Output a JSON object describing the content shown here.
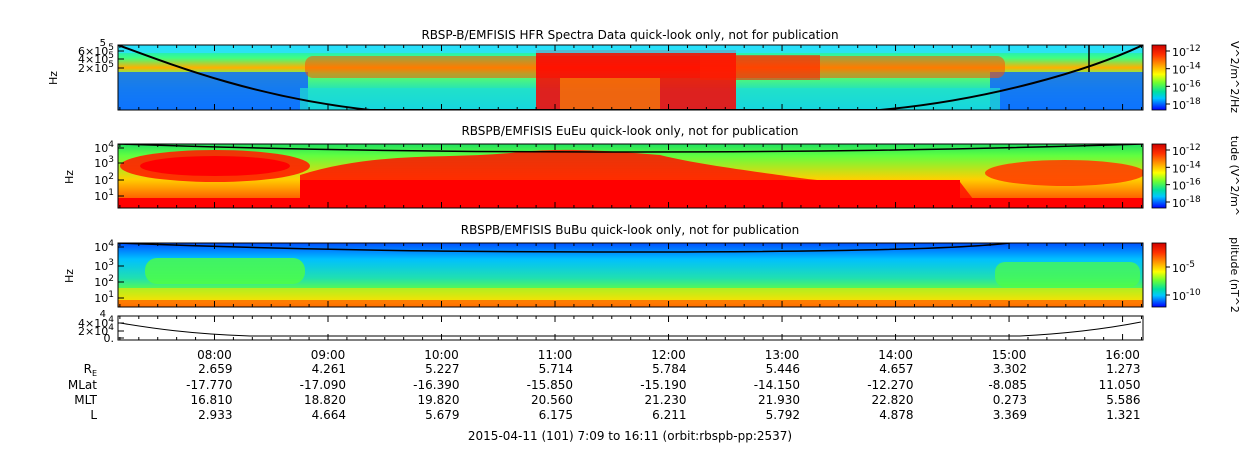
{
  "chart_data": {
    "type": "heatmap",
    "time_ticks": [
      "08:00",
      "09:00",
      "10:00",
      "11:00",
      "12:00",
      "13:00",
      "14:00",
      "15:00",
      "16:00"
    ],
    "time_start_hours": 7.15,
    "time_end_hours": 16.18,
    "ephemeris": {
      "labels": {
        "rs_main": "R",
        "rs_sub": "E",
        "mlat": "MLat",
        "mlt": "MLT",
        "l": "L"
      },
      "rs": [
        "2.659",
        "4.261",
        "5.227",
        "5.714",
        "5.784",
        "5.446",
        "4.657",
        "3.302",
        "1.273"
      ],
      "mlat": [
        "-17.770",
        "-17.090",
        "-16.390",
        "-15.850",
        "-15.190",
        "-14.150",
        "-12.270",
        "-8.085",
        "11.050"
      ],
      "mlt": [
        "16.810",
        "18.820",
        "19.820",
        "20.560",
        "21.230",
        "21.930",
        "22.820",
        "0.273",
        "5.586"
      ],
      "l": [
        "2.933",
        "4.664",
        "5.679",
        "6.175",
        "6.211",
        "5.792",
        "4.878",
        "3.369",
        "1.321"
      ]
    },
    "footer": "2015-04-11 (101) 7:09 to 16:11 (orbit:rbspb-pp:2537)",
    "panels": [
      {
        "id": "hfr",
        "title": "RBSP-B/EMFISIS  HFR Spectra Data quick-look only, not for publication",
        "ylabel": "Hz",
        "yticks": [
          {
            "base": "6×10",
            "exp": "5"
          },
          {
            "base": "4×10",
            "exp": "5"
          },
          {
            "base": "2×10",
            "exp": "5"
          }
        ],
        "ytick_top": "5",
        "colorbar_label": "V^2/m^2/Hz",
        "colorbar_ticks": [
          {
            "base": "10",
            "exp": "-12"
          },
          {
            "base": "10",
            "exp": "-14"
          },
          {
            "base": "10",
            "exp": "-16"
          },
          {
            "base": "10",
            "exp": "-18"
          }
        ]
      },
      {
        "id": "eueu",
        "title": "RBSPB/EMFISIS  EuEu quick-look only, not for publication",
        "ylabel": "Hz",
        "yticks": [
          {
            "base": "10",
            "exp": "4"
          },
          {
            "base": "10",
            "exp": "3"
          },
          {
            "base": "10",
            "exp": "2"
          },
          {
            "base": "10",
            "exp": "1"
          }
        ],
        "colorbar_label": "tude (V^2/m^",
        "colorbar_ticks": [
          {
            "base": "10",
            "exp": "-12"
          },
          {
            "base": "10",
            "exp": "-14"
          },
          {
            "base": "10",
            "exp": "-16"
          },
          {
            "base": "10",
            "exp": "-18"
          }
        ]
      },
      {
        "id": "bubu",
        "title": "RBSPB/EMFISIS  BuBu quick-look only, not for publication",
        "ylabel": "Hz",
        "yticks": [
          {
            "base": "10",
            "exp": "4"
          },
          {
            "base": "10",
            "exp": "3"
          },
          {
            "base": "10",
            "exp": "2"
          },
          {
            "base": "10",
            "exp": "1"
          }
        ],
        "colorbar_label": "plitude (nT^2",
        "colorbar_ticks": [
          {
            "base": "10",
            "exp": "-5"
          },
          {
            "base": "10",
            "exp": "-10"
          }
        ]
      },
      {
        "id": "line",
        "title": "",
        "ylabel": "",
        "yticks": [
          {
            "base": "4×10",
            "exp": "4"
          },
          {
            "base": "2×10",
            "exp": "4"
          },
          {
            "base": "0.",
            "exp": ""
          }
        ],
        "ytick_top": "4"
      }
    ]
  }
}
